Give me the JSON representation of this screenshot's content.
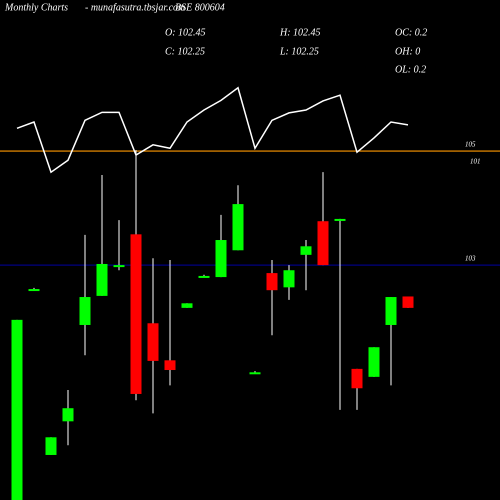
{
  "chart_data": {
    "type": "candlestick",
    "title": "Monthly Charts",
    "source": "- munafasutra.tbsjar.com",
    "symbol": "BSE 800604",
    "stats": [
      "O: 102.45",
      "H: 102.45",
      "OC: 0.2",
      "C: 102.25",
      "L: 102.25",
      "OH: 0",
      "OL: 0.2"
    ],
    "open": [
      98.88,
      102.58,
      99.67,
      100.26,
      101.95,
      102.46,
      103,
      103.54,
      101.98,
      101.33,
      102.25,
      102.81,
      102.79,
      103.26,
      101.12,
      102.86,
      102.61,
      103.18,
      103.77,
      103.81,
      101.18,
      101.04,
      101.95,
      102.45
    ],
    "high": [
      102.04,
      102.6,
      99.98,
      100.81,
      103.53,
      104.58,
      103.79,
      105.02,
      103.12,
      103.09,
      102.33,
      102.83,
      103.88,
      104.4,
      101.14,
      103.09,
      103,
      103.44,
      104.63,
      103.81,
      101.18,
      101.56,
      102.44,
      102.45
    ],
    "low": [
      98.88,
      102.56,
      99.67,
      99.84,
      101.42,
      102.46,
      102.91,
      100.63,
      100.4,
      100.89,
      102.25,
      102.79,
      102.79,
      103.26,
      101.1,
      101.77,
      102.39,
      102.56,
      103,
      100.46,
      100.46,
      101.04,
      100.89,
      102.25
    ],
    "close": [
      102.04,
      102.58,
      99.98,
      100.49,
      102.44,
      103.02,
      103,
      100.74,
      101.32,
      101.16,
      102.33,
      102.81,
      103.44,
      104.07,
      101.12,
      102.56,
      102.91,
      103.33,
      103,
      103.81,
      100.84,
      101.56,
      102.44,
      102.25
    ],
    "up_color": "#00ff00",
    "down_color": "#ff0000",
    "overlay": {
      "color": "#ffffff",
      "values": [
        105.4,
        105.51,
        104.63,
        104.84,
        105.54,
        105.68,
        105.68,
        104.93,
        105.11,
        105.05,
        105.51,
        105.72,
        105.89,
        106.11,
        105.05,
        105.54,
        105.67,
        105.72,
        105.88,
        105.98,
        104.98,
        105.23,
        105.51,
        105.46
      ]
    },
    "ylim": [
      98.88,
      107.65
    ],
    "yticks": [
      105,
      103
    ],
    "grid_colors": [
      "#ff9900",
      "#000080"
    ],
    "annotations": [
      "101"
    ]
  }
}
